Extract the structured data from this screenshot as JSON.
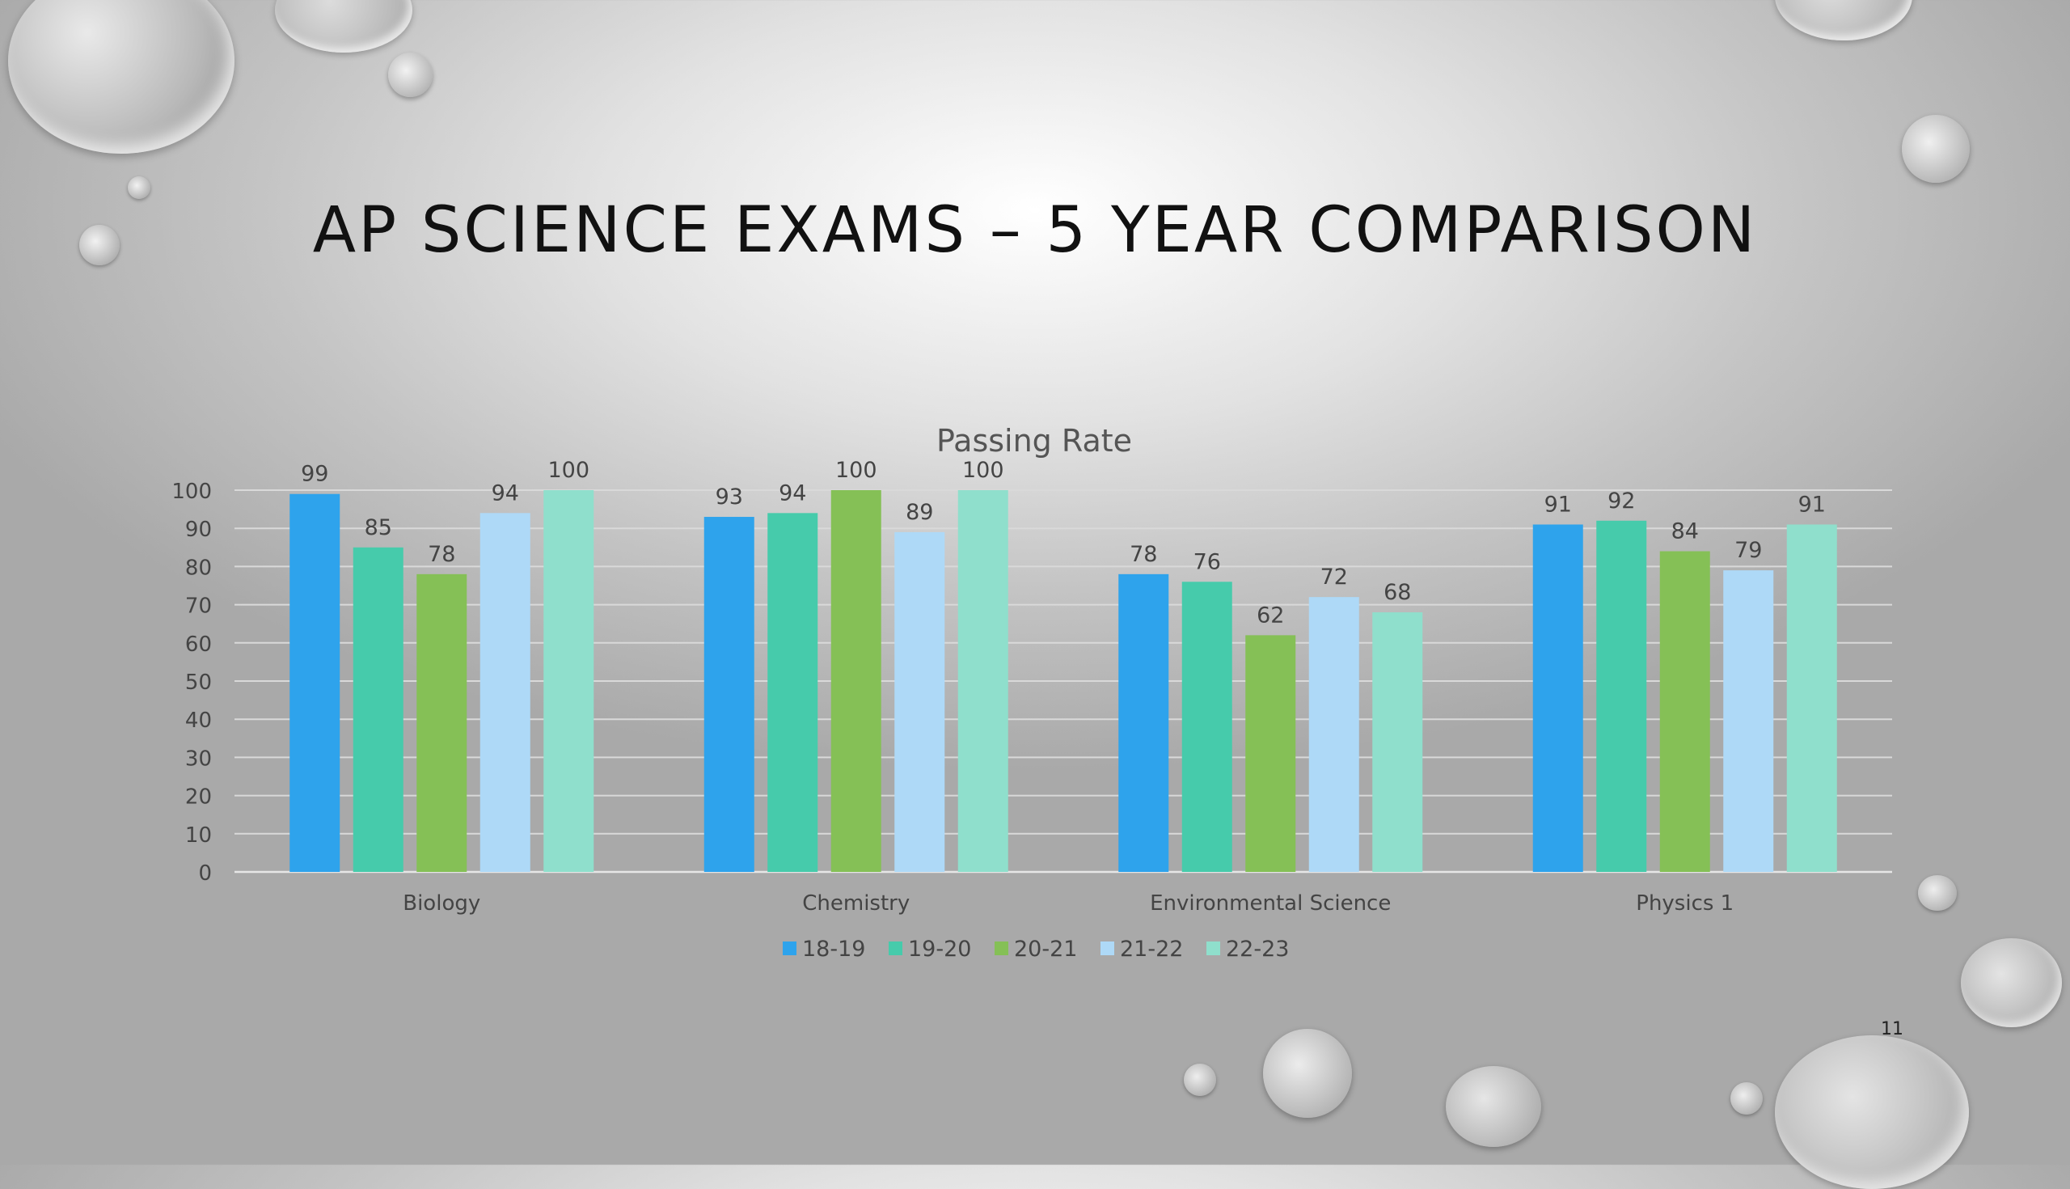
{
  "slide": {
    "title": "AP SCIENCE EXAMS – 5 YEAR COMPARISON",
    "page_number": "11"
  },
  "colors": {
    "background": "#c8c8c8",
    "series": [
      "#2ea3ec",
      "#46cbab",
      "#85c056",
      "#aed9f7",
      "#8fdfcc"
    ]
  },
  "chart_data": {
    "type": "bar",
    "title": "Passing Rate",
    "xlabel": "",
    "ylabel": "",
    "categories": [
      "Biology",
      "Chemistry",
      "Environmental Science",
      "Physics 1"
    ],
    "series": [
      {
        "name": "18-19",
        "values": [
          99,
          93,
          78,
          91
        ]
      },
      {
        "name": "19-20",
        "values": [
          85,
          94,
          76,
          92
        ]
      },
      {
        "name": "20-21",
        "values": [
          78,
          100,
          62,
          84
        ]
      },
      {
        "name": "21-22",
        "values": [
          94,
          89,
          72,
          79
        ]
      },
      {
        "name": "22-23",
        "values": [
          100,
          100,
          68,
          91
        ]
      }
    ],
    "ylim": [
      0,
      100
    ],
    "yticks": [
      0,
      10,
      20,
      30,
      40,
      50,
      60,
      70,
      80,
      90,
      100
    ],
    "grid": true,
    "data_labels": true,
    "legend": "bottom"
  }
}
